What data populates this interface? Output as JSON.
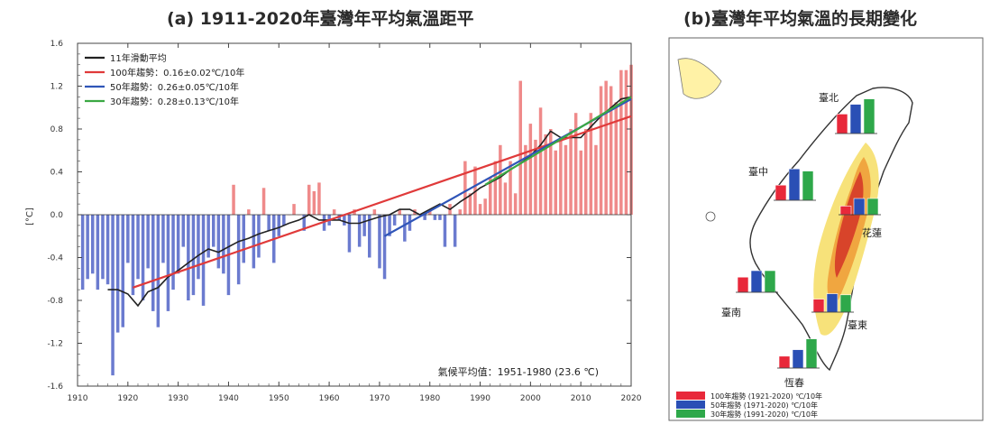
{
  "chart_data": [
    {
      "type": "bar",
      "title": "(a) 1911-2020年臺灣年平均氣溫距平",
      "ylabel": "[°C]",
      "xlim": [
        1910,
        2020
      ],
      "ylim": [
        -1.6,
        1.6
      ],
      "xticks": [
        1910,
        1920,
        1930,
        1940,
        1950,
        1960,
        1970,
        1980,
        1990,
        2000,
        2010,
        2020
      ],
      "yticks": [
        -1.6,
        -1.2,
        -0.8,
        -0.4,
        0.0,
        0.4,
        0.8,
        1.2,
        1.6
      ],
      "ytick_labels": [
        "-1.6",
        "-1.2",
        "-0.8",
        "-0.4",
        "0.0",
        "0.4",
        "0.8",
        "1.2",
        "1.6"
      ],
      "bars": {
        "years_start": 1911,
        "values": [
          -0.7,
          -0.6,
          -0.55,
          -0.7,
          -0.6,
          -0.65,
          -1.5,
          -1.1,
          -1.05,
          -0.45,
          -0.75,
          -0.6,
          -0.8,
          -0.5,
          -0.9,
          -1.05,
          -0.45,
          -0.9,
          -0.7,
          -0.55,
          -0.3,
          -0.8,
          -0.75,
          -0.6,
          -0.85,
          -0.4,
          -0.3,
          -0.5,
          -0.55,
          -0.75,
          0.28,
          -0.65,
          -0.45,
          0.05,
          -0.5,
          -0.4,
          0.25,
          -0.15,
          -0.45,
          -0.2,
          -0.1,
          0.0,
          0.1,
          0.0,
          -0.15,
          0.28,
          0.22,
          0.3,
          -0.15,
          -0.1,
          0.05,
          -0.05,
          -0.1,
          -0.35,
          0.05,
          -0.3,
          -0.2,
          -0.4,
          0.05,
          -0.5,
          -0.6,
          -0.2,
          -0.1,
          0.05,
          -0.25,
          -0.15,
          0.05,
          0.0,
          -0.05,
          0.05,
          -0.05,
          -0.05,
          -0.3,
          0.1,
          -0.3,
          0.05,
          0.5,
          0.2,
          0.45,
          0.1,
          0.15,
          0.35,
          0.5,
          0.65,
          0.3,
          0.5,
          0.2,
          1.25,
          0.65,
          0.85,
          0.7,
          1.0,
          0.75,
          0.8,
          0.6,
          0.7,
          0.65,
          0.8,
          0.95,
          0.6,
          0.8,
          0.95,
          0.65,
          1.2,
          1.25,
          1.2,
          1.05,
          1.35,
          1.35,
          1.4
        ],
        "positive_color": "#ef8a8a",
        "negative_color": "#6b7bcf"
      },
      "series": [
        {
          "name": "11年滑動平均",
          "color": "#222222",
          "x": [
            1916,
            1918,
            1920,
            1922,
            1924,
            1926,
            1928,
            1930,
            1932,
            1934,
            1936,
            1938,
            1940,
            1942,
            1944,
            1946,
            1948,
            1950,
            1952,
            1954,
            1956,
            1958,
            1960,
            1962,
            1964,
            1966,
            1968,
            1970,
            1972,
            1974,
            1976,
            1978,
            1980,
            1982,
            1984,
            1986,
            1988,
            1990,
            1992,
            1994,
            1996,
            1998,
            2000,
            2002,
            2004,
            2006,
            2008,
            2010,
            2012,
            2014,
            2016,
            2018,
            2020
          ],
          "y": [
            -0.7,
            -0.7,
            -0.74,
            -0.85,
            -0.72,
            -0.68,
            -0.58,
            -0.52,
            -0.45,
            -0.38,
            -0.32,
            -0.35,
            -0.3,
            -0.25,
            -0.22,
            -0.18,
            -0.15,
            -0.12,
            -0.08,
            -0.05,
            0.0,
            -0.05,
            -0.05,
            -0.05,
            -0.08,
            -0.08,
            -0.05,
            -0.02,
            0.0,
            0.05,
            0.05,
            0.0,
            0.05,
            0.1,
            0.05,
            0.12,
            0.18,
            0.25,
            0.3,
            0.35,
            0.42,
            0.48,
            0.55,
            0.65,
            0.78,
            0.72,
            0.72,
            0.72,
            0.82,
            0.92,
            1.0,
            1.08,
            1.1
          ]
        },
        {
          "name": "100年趨勢：0.16±0.02℃/10年",
          "color": "#e03a3a",
          "x": [
            1921,
            2020
          ],
          "y": [
            -0.68,
            0.92
          ]
        },
        {
          "name": "50年趨勢：0.26±0.05℃/10年",
          "color": "#2f55b8",
          "x": [
            1971,
            2020
          ],
          "y": [
            -0.2,
            1.08
          ]
        },
        {
          "name": "30年趨勢：0.28±0.13℃/10年",
          "color": "#3aa843",
          "x": [
            1991,
            2020
          ],
          "y": [
            0.28,
            1.1
          ]
        }
      ],
      "annotation": "氣候平均值：1951-1980 (23.6 ℃)"
    },
    {
      "type": "bar",
      "title": "(b)臺灣年平均氣溫的長期變化",
      "stations": [
        {
          "name": "臺北",
          "values": [
            0.9,
            1.35,
            1.6
          ]
        },
        {
          "name": "臺中",
          "values": [
            0.7,
            1.45,
            1.35
          ]
        },
        {
          "name": "花蓮",
          "values": [
            0.4,
            0.75,
            0.75
          ]
        },
        {
          "name": "臺南",
          "values": [
            0.7,
            1.0,
            1.0
          ]
        },
        {
          "name": "臺東",
          "values": [
            0.6,
            0.85,
            0.8
          ]
        },
        {
          "name": "恆春",
          "values": [
            0.55,
            0.85,
            1.35
          ]
        }
      ],
      "legend": [
        {
          "label": "100年趨勢 (1921-2020) ℃/10年",
          "color": "#e8283a"
        },
        {
          "label": "50年趨勢 (1971-2020) ℃/10年",
          "color": "#2a4fb5"
        },
        {
          "label": "30年趨勢 (1991-2020) ℃/10年",
          "color": "#2ea84a"
        }
      ]
    }
  ]
}
